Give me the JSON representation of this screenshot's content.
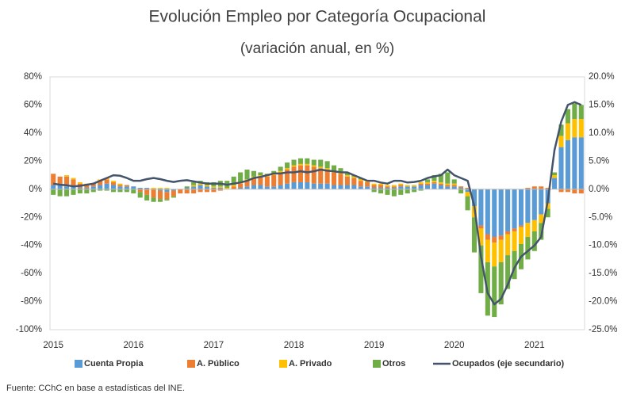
{
  "chart_data": {
    "type": "bar",
    "stacked": true,
    "title": "Evolución Empleo por Categoría Ocupacional",
    "subtitle": "(variación anual, en %)",
    "source": "Fuente: CChC en base a estadísticas del INE.",
    "categories": [
      "2015",
      null,
      null,
      null,
      null,
      null,
      null,
      null,
      null,
      null,
      null,
      null,
      "2016",
      null,
      null,
      null,
      null,
      null,
      null,
      null,
      null,
      null,
      null,
      null,
      "2017",
      null,
      null,
      null,
      null,
      null,
      null,
      null,
      null,
      null,
      null,
      null,
      "2018",
      null,
      null,
      null,
      null,
      null,
      null,
      null,
      null,
      null,
      null,
      null,
      "2019",
      null,
      null,
      null,
      null,
      null,
      null,
      null,
      null,
      null,
      null,
      null,
      "2020",
      null,
      null,
      null,
      null,
      null,
      null,
      null,
      null,
      null,
      null,
      null,
      "2021",
      null,
      null,
      null,
      null,
      null,
      null,
      null
    ],
    "ylim": [
      -100,
      80
    ],
    "yticks": [
      {
        "value": -100,
        "label": "-100%"
      },
      {
        "value": -80,
        "label": "-80%"
      },
      {
        "value": -60,
        "label": "-60%"
      },
      {
        "value": -40,
        "label": "-40%"
      },
      {
        "value": -20,
        "label": "-20%"
      },
      {
        "value": 0,
        "label": "0%"
      },
      {
        "value": 20,
        "label": "20%"
      },
      {
        "value": 40,
        "label": "40%"
      },
      {
        "value": 60,
        "label": "60%"
      },
      {
        "value": 80,
        "label": "80%"
      }
    ],
    "y2lim": [
      -25,
      20
    ],
    "y2ticks": [
      {
        "value": -25,
        "label": "-25.0%"
      },
      {
        "value": -20,
        "label": "-20.0%"
      },
      {
        "value": -15,
        "label": "-15.0%"
      },
      {
        "value": -10,
        "label": "-10.0%"
      },
      {
        "value": -5,
        "label": "-5.0%"
      },
      {
        "value": 0,
        "label": "0.0%"
      },
      {
        "value": 5,
        "label": "5.0%"
      },
      {
        "value": 10,
        "label": "10.0%"
      },
      {
        "value": 15,
        "label": "15.0%"
      },
      {
        "value": 20,
        "label": "20.0%"
      }
    ],
    "grid": false,
    "legend": "bottom",
    "series": [
      {
        "name": "Cuenta Propia",
        "color": "#5b9bd5",
        "values": [
          3,
          3,
          2,
          2,
          1,
          1,
          2,
          3,
          4,
          3,
          2,
          2,
          2,
          1,
          1,
          0,
          -1,
          -2,
          -1,
          0,
          1,
          2,
          3,
          2,
          1,
          1,
          0,
          0,
          1,
          2,
          3,
          3,
          2,
          2,
          3,
          4,
          5,
          5,
          5,
          4,
          4,
          4,
          3,
          3,
          3,
          3,
          2,
          2,
          1,
          1,
          1,
          1,
          2,
          2,
          2,
          3,
          3,
          4,
          3,
          2,
          2,
          1,
          -2,
          -12,
          -26,
          -32,
          -34,
          -33,
          -30,
          -28,
          -26,
          -24,
          -22,
          -18,
          -10,
          8,
          30,
          35,
          37,
          37
        ]
      },
      {
        "name": "A. Público",
        "color": "#ed7d31",
        "values": [
          8,
          6,
          7,
          5,
          3,
          2,
          2,
          3,
          3,
          2,
          1,
          1,
          0,
          -2,
          -4,
          -6,
          -6,
          -5,
          -4,
          -3,
          -3,
          -3,
          -2,
          -2,
          -2,
          -1,
          0,
          2,
          3,
          4,
          5,
          6,
          7,
          8,
          9,
          10,
          11,
          12,
          12,
          12,
          11,
          10,
          9,
          8,
          6,
          5,
          4,
          3,
          2,
          2,
          1,
          1,
          1,
          0,
          0,
          1,
          1,
          1,
          1,
          1,
          1,
          1,
          1,
          0,
          -2,
          -4,
          -4,
          -3,
          -2,
          -2,
          -1,
          1,
          2,
          2,
          1,
          0,
          -2,
          -2,
          -3,
          -3
        ]
      },
      {
        "name": "A. Privado",
        "color": "#ffc000",
        "values": [
          0,
          0,
          1,
          1,
          1,
          1,
          0,
          1,
          1,
          1,
          1,
          0,
          0,
          0,
          0,
          1,
          1,
          1,
          0,
          0,
          0,
          1,
          1,
          1,
          1,
          1,
          1,
          1,
          1,
          1,
          1,
          1,
          1,
          1,
          1,
          1,
          1,
          1,
          1,
          1,
          1,
          1,
          1,
          1,
          1,
          1,
          1,
          1,
          1,
          1,
          1,
          1,
          1,
          1,
          1,
          1,
          1,
          1,
          1,
          1,
          1,
          0,
          -3,
          -8,
          -12,
          -16,
          -17,
          -16,
          -15,
          -14,
          -12,
          -10,
          -8,
          -6,
          -4,
          2,
          8,
          12,
          13,
          13
        ]
      },
      {
        "name": "Otros",
        "color": "#70ad47",
        "values": [
          -4,
          -5,
          -5,
          -4,
          -3,
          -3,
          -2,
          -1,
          -1,
          -2,
          -2,
          -2,
          -3,
          -4,
          -4,
          -3,
          -2,
          -1,
          -1,
          0,
          1,
          2,
          2,
          2,
          3,
          4,
          5,
          6,
          7,
          7,
          4,
          2,
          1,
          2,
          3,
          4,
          4,
          4,
          4,
          4,
          5,
          5,
          4,
          3,
          2,
          1,
          1,
          0,
          -2,
          -3,
          -4,
          -5,
          -4,
          -3,
          -2,
          -1,
          2,
          4,
          6,
          8,
          3,
          -3,
          -10,
          -25,
          -34,
          -38,
          -36,
          -30,
          -24,
          -20,
          -18,
          -16,
          -14,
          -12,
          -6,
          2,
          8,
          10,
          11,
          10
        ]
      },
      {
        "name": "Ocupados (eje secundario)",
        "type": "line",
        "axis": "y2",
        "color": "#44546a",
        "values": [
          1.0,
          0.8,
          0.7,
          0.5,
          0.6,
          0.8,
          1.0,
          1.5,
          2.0,
          2.5,
          2.4,
          2.0,
          1.5,
          1.5,
          1.8,
          2.0,
          1.8,
          1.5,
          1.3,
          1.5,
          1.6,
          1.4,
          1.2,
          1.0,
          1.0,
          1.0,
          0.8,
          1.0,
          1.2,
          1.5,
          2.0,
          2.2,
          2.5,
          2.8,
          2.8,
          3.0,
          3.0,
          3.2,
          3.0,
          3.2,
          3.5,
          3.3,
          3.2,
          3.0,
          3.0,
          2.5,
          2.0,
          1.5,
          1.5,
          1.2,
          1.0,
          1.5,
          1.5,
          1.2,
          1.3,
          1.5,
          2.0,
          2.3,
          2.5,
          3.5,
          2.5,
          2.0,
          1.5,
          -3.0,
          -12.0,
          -18.5,
          -20.5,
          -19.5,
          -17.0,
          -14.0,
          -12.0,
          -11.0,
          -10.0,
          -8.5,
          -2.0,
          7.0,
          12.0,
          15.0,
          15.5,
          15.0
        ]
      }
    ]
  }
}
